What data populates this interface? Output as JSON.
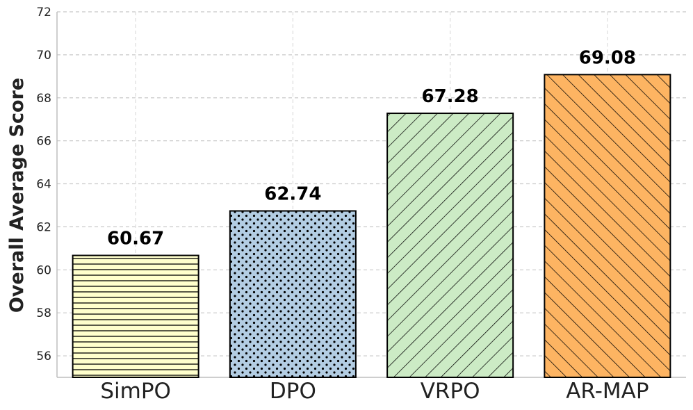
{
  "chart_data": {
    "type": "bar",
    "title": "",
    "xlabel": "",
    "ylabel": "Overall Average Score",
    "categories": [
      "SimPO",
      "DPO",
      "VRPO",
      "AR-MAP"
    ],
    "values": [
      60.67,
      62.74,
      67.28,
      69.08
    ],
    "value_labels": [
      "60.67",
      "62.74",
      "67.28",
      "69.08"
    ],
    "ylim": [
      55,
      72
    ],
    "yticks": [
      56,
      58,
      60,
      62,
      64,
      66,
      68,
      70,
      72
    ],
    "grid": true,
    "bar_colors": [
      "#ffffcc",
      "#b3cde3",
      "#ccebc5",
      "#fdb462"
    ],
    "bar_patterns": [
      "horizontal",
      "dots",
      "forward-diagonal",
      "back-diagonal"
    ]
  }
}
